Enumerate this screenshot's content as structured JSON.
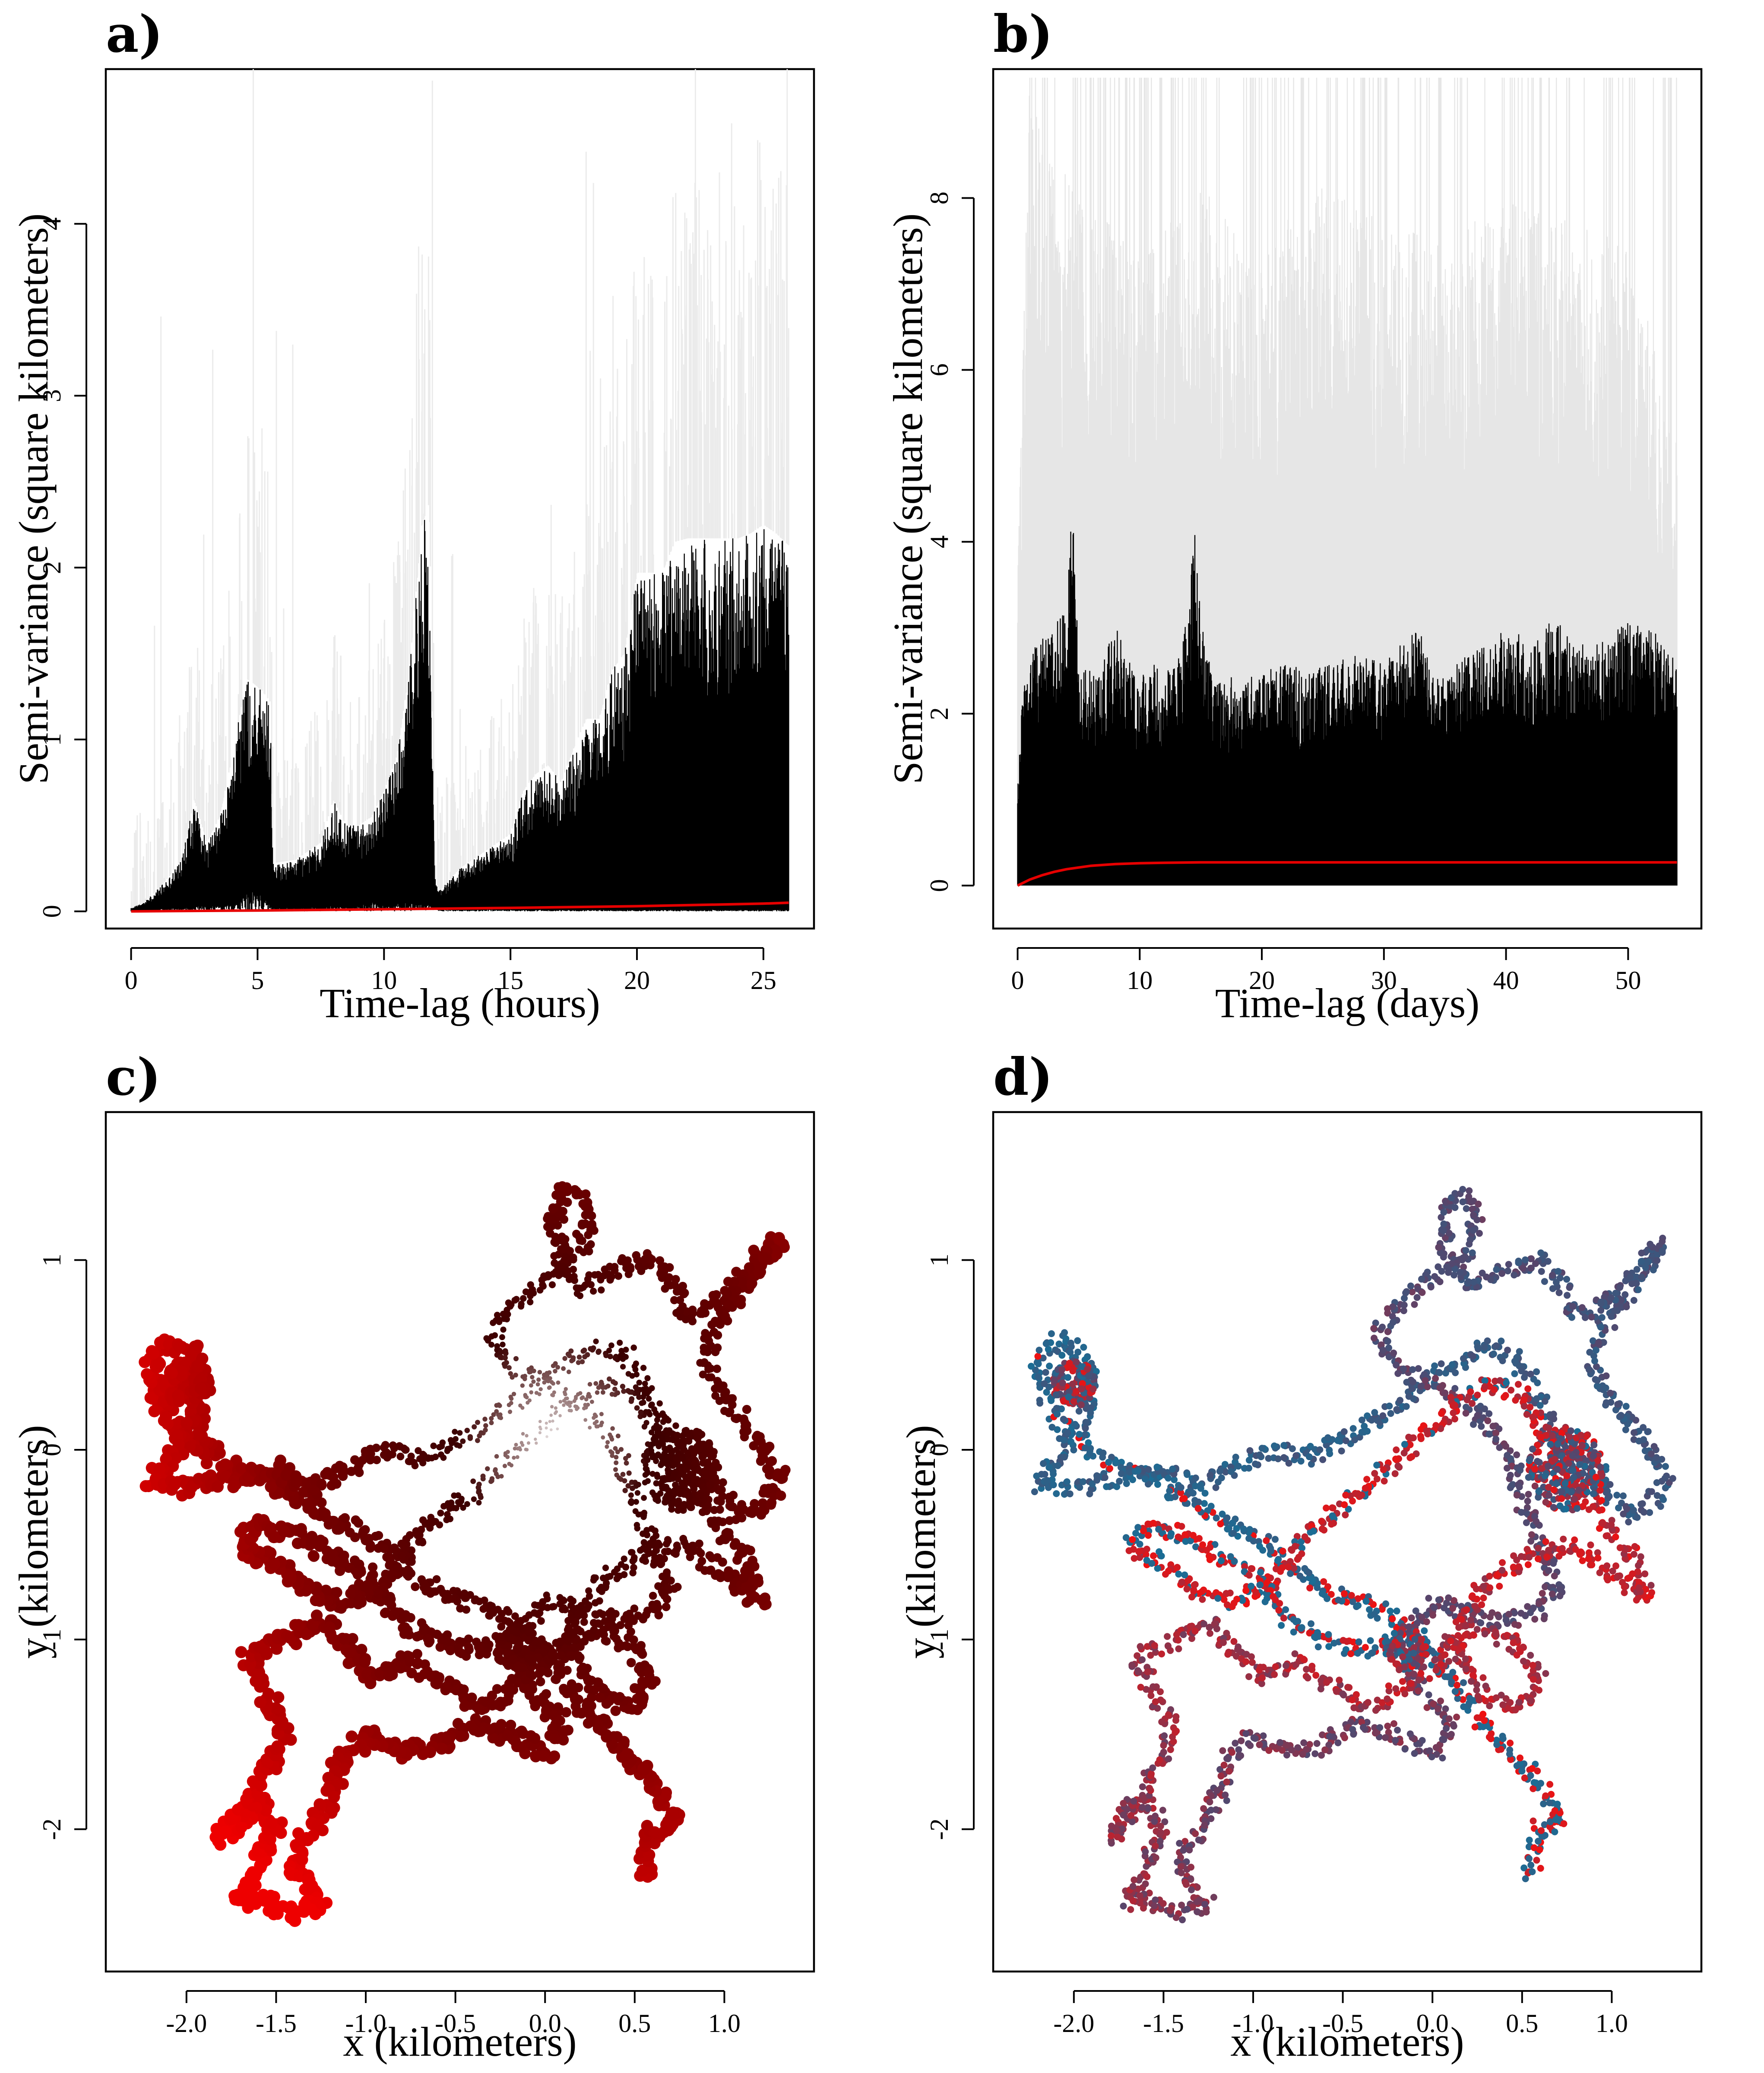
{
  "chart_data": [
    {
      "panel": "a)",
      "type": "line",
      "xlabel": "Time-lag (hours)",
      "ylabel": "Semi-variance (square kilometers)",
      "xlim": [
        -1,
        27
      ],
      "ylim": [
        -0.1,
        4.9
      ],
      "xticks": [
        0,
        5,
        10,
        15,
        20,
        25
      ],
      "yticks": [
        0,
        1,
        2,
        3,
        4
      ],
      "empirical_color": "#000000",
      "ci_color": "#ebebeb",
      "model_color": "#e60000",
      "empirical_envelope": {
        "x": [
          0,
          0.5,
          1,
          1.5,
          2,
          2.5,
          3,
          3.5,
          4,
          4.3,
          4.6,
          4.9,
          5.2,
          5.5,
          5.6,
          6.5,
          7,
          7.5,
          8,
          8.5,
          9,
          9.5,
          10,
          10.5,
          11,
          11.5,
          11.8,
          12,
          12.2,
          13,
          14,
          15,
          15.5,
          16,
          16.5,
          17,
          17.5,
          18,
          18.5,
          19,
          19.5,
          20,
          20.5,
          21,
          21.5,
          22,
          22.5,
          23,
          23.5,
          24,
          24.5,
          25,
          25.5,
          26
        ],
        "upper": [
          0.02,
          0.05,
          0.12,
          0.2,
          0.3,
          0.65,
          0.4,
          0.55,
          0.9,
          1.15,
          1.35,
          1.32,
          1.28,
          1.22,
          0.28,
          0.3,
          0.35,
          0.4,
          0.65,
          0.5,
          0.5,
          0.55,
          0.7,
          0.9,
          1.4,
          2.25,
          2.38,
          0.2,
          0.12,
          0.25,
          0.35,
          0.45,
          0.7,
          0.8,
          0.85,
          0.75,
          0.95,
          1.12,
          1.12,
          1.4,
          1.5,
          1.97,
          1.97,
          1.97,
          2.15,
          2.17,
          2.17,
          2.17,
          2.17,
          2.17,
          2.2,
          2.25,
          2.2,
          2.13
        ],
        "lower": [
          0,
          0,
          0.01,
          0.02,
          0.02,
          0.03,
          0.03,
          0.04,
          0.05,
          0.08,
          0.1,
          0.12,
          0.1,
          0.05,
          0.02,
          0.02,
          0.02,
          0.03,
          0.03,
          0.03,
          0.04,
          0.05,
          0.05,
          0.05,
          0.05,
          0.05,
          0.05,
          0.02,
          0.01,
          0.01,
          0.01,
          0.01,
          0.01,
          0.01,
          0.01,
          0.01,
          0.01,
          0.01,
          0.01,
          0.01,
          0.01,
          0.01,
          0.01,
          0.01,
          0.01,
          0.01,
          0.01,
          0.01,
          0.01,
          0.01,
          0.01,
          0.01,
          0.01,
          0.01
        ]
      },
      "model": {
        "x": [
          0,
          5,
          10,
          15,
          20,
          25,
          26
        ],
        "y": [
          0,
          0.005,
          0.012,
          0.02,
          0.03,
          0.045,
          0.05
        ]
      }
    },
    {
      "panel": "b)",
      "type": "line",
      "xlabel": "Time-lag (days)",
      "ylabel": "Semi-variance (square kilometers)",
      "xlim": [
        -2,
        56
      ],
      "ylim": [
        -0.5,
        9.5
      ],
      "xticks": [
        0,
        10,
        20,
        30,
        40,
        50
      ],
      "yticks": [
        0,
        2,
        4,
        6,
        8
      ],
      "empirical_color": "#000000",
      "ci_color": "#e6e6e6",
      "model_color": "#e60000",
      "empirical_envelope": {
        "x": [
          0,
          0.5,
          1,
          2,
          3,
          4,
          4.5,
          5,
          6,
          7,
          8,
          9,
          10,
          11,
          12,
          13,
          14,
          14.5,
          15,
          16,
          18,
          20,
          22,
          24,
          26,
          28,
          30,
          32,
          33,
          34,
          35,
          36,
          38,
          40,
          42,
          44,
          46,
          48,
          50,
          52,
          54
        ],
        "upper": [
          1.3,
          2.4,
          2.7,
          2.9,
          3.0,
          3.3,
          4.5,
          2.6,
          2.5,
          2.6,
          3.1,
          2.7,
          2.4,
          2.6,
          2.5,
          2.6,
          3.2,
          4.3,
          3.1,
          2.5,
          2.4,
          2.5,
          2.6,
          2.5,
          2.6,
          2.7,
          2.6,
          2.9,
          3.0,
          2.5,
          2.4,
          2.6,
          2.8,
          3.0,
          2.9,
          3.1,
          2.8,
          2.9,
          3.1,
          3.0,
          2.6
        ],
        "lower": [
          0,
          0,
          0,
          0,
          0,
          0,
          0,
          0,
          0,
          0,
          0,
          0,
          0,
          0,
          0,
          0,
          0,
          0,
          0,
          0,
          0,
          0,
          0,
          0,
          0,
          0,
          0,
          0,
          0,
          0,
          0,
          0,
          0,
          0,
          0,
          0,
          0,
          0,
          0,
          0,
          0
        ]
      },
      "ci_envelope": {
        "x": [
          0,
          1,
          2,
          5,
          10,
          15,
          20,
          25,
          30,
          35,
          40,
          45,
          50,
          54
        ],
        "upper": [
          3.5,
          9.4,
          9.4,
          9.4,
          9.4,
          9.4,
          9.4,
          9.4,
          9.4,
          9.4,
          9.4,
          9.4,
          9.4,
          9.4
        ],
        "typical_upper": [
          3.5,
          7.5,
          7.0,
          6.5,
          6.0,
          6.5,
          6.0,
          6.5,
          6.2,
          6.0,
          6.4,
          6.2,
          6.0,
          4.2
        ]
      },
      "model": {
        "x": [
          0,
          1,
          2,
          3,
          4,
          5,
          6,
          8,
          10,
          12,
          15,
          20,
          30,
          40,
          54
        ],
        "y": [
          0,
          0.07,
          0.12,
          0.16,
          0.19,
          0.21,
          0.23,
          0.25,
          0.26,
          0.265,
          0.27,
          0.27,
          0.27,
          0.27,
          0.27
        ]
      }
    },
    {
      "panel": "c)",
      "type": "scatter",
      "xlabel": "x (kilometers)",
      "ylabel": "y (kilometers)",
      "xlim": [
        -2.45,
        1.5
      ],
      "ylim": [
        -2.75,
        1.78
      ],
      "xticks": [
        "-2.0",
        "-1.5",
        "-1.0",
        "-0.5",
        "0.0",
        "0.5",
        "1.0"
      ],
      "xtick_values": [
        -2.0,
        -1.5,
        -1.0,
        -0.5,
        0.0,
        0.5,
        1.0
      ],
      "yticks": [
        "1",
        "0",
        "-1",
        "-2"
      ],
      "ytick_values": [
        1,
        0,
        -1,
        -2
      ],
      "coloring": "radial shade: white center to dark red to bright red at edges",
      "colors": [
        "#ffffff",
        "#3a0000",
        "#7a0000",
        "#ee0000"
      ],
      "track": [
        [
          0.55,
          -2.24
        ],
        [
          0.6,
          -2.0
        ],
        [
          0.72,
          -1.98
        ],
        [
          0.6,
          -1.75
        ],
        [
          0.4,
          -1.55
        ],
        [
          0.25,
          -1.4
        ],
        [
          0.1,
          -1.2
        ],
        [
          -0.05,
          -1.0
        ],
        [
          -0.2,
          -0.9
        ],
        [
          -0.4,
          -0.8
        ],
        [
          -0.6,
          -0.75
        ],
        [
          -0.8,
          -0.6
        ],
        [
          -1.0,
          -0.45
        ],
        [
          -1.2,
          -0.35
        ],
        [
          -1.4,
          -0.25
        ],
        [
          -1.55,
          -0.15
        ],
        [
          -1.75,
          -0.1
        ],
        [
          -1.9,
          0.0
        ],
        [
          -2.05,
          0.1
        ],
        [
          -2.15,
          0.25
        ],
        [
          -2.2,
          0.45
        ],
        [
          -2.1,
          0.58
        ],
        [
          -1.95,
          0.5
        ],
        [
          -1.9,
          0.35
        ],
        [
          -1.95,
          0.15
        ],
        [
          -2.1,
          -0.05
        ],
        [
          -2.2,
          -0.18
        ],
        [
          -2.0,
          -0.2
        ],
        [
          -1.75,
          -0.15
        ],
        [
          -1.5,
          -0.1
        ],
        [
          -1.3,
          -0.2
        ],
        [
          -1.1,
          -0.1
        ],
        [
          -0.9,
          0.0
        ],
        [
          -0.7,
          -0.05
        ],
        [
          -0.5,
          0.05
        ],
        [
          -0.3,
          0.15
        ],
        [
          -0.1,
          0.3
        ],
        [
          0.1,
          0.45
        ],
        [
          0.3,
          0.55
        ],
        [
          0.45,
          0.5
        ],
        [
          0.55,
          0.35
        ],
        [
          0.65,
          0.15
        ],
        [
          0.8,
          0.0
        ],
        [
          0.95,
          -0.2
        ],
        [
          1.1,
          -0.35
        ],
        [
          1.25,
          -0.25
        ],
        [
          1.3,
          -0.15
        ],
        [
          1.2,
          0.05
        ],
        [
          1.0,
          0.25
        ],
        [
          0.9,
          0.45
        ],
        [
          0.95,
          0.65
        ],
        [
          1.1,
          0.85
        ],
        [
          1.3,
          1.1
        ],
        [
          1.2,
          1.0
        ],
        [
          1.0,
          0.8
        ],
        [
          0.8,
          0.7
        ],
        [
          0.7,
          0.9
        ],
        [
          0.6,
          1.0
        ],
        [
          0.4,
          0.95
        ],
        [
          0.2,
          0.85
        ],
        [
          0.1,
          1.0
        ],
        [
          0.05,
          1.2
        ],
        [
          0.1,
          1.35
        ],
        [
          0.2,
          1.35
        ],
        [
          0.25,
          1.2
        ],
        [
          0.2,
          1.05
        ],
        [
          0.0,
          0.9
        ],
        [
          -0.2,
          0.75
        ],
        [
          -0.3,
          0.6
        ],
        [
          -0.2,
          0.45
        ],
        [
          0.0,
          0.35
        ],
        [
          0.25,
          0.2
        ],
        [
          0.4,
          0.0
        ],
        [
          0.5,
          -0.25
        ],
        [
          0.6,
          -0.5
        ],
        [
          0.7,
          -0.7
        ],
        [
          0.6,
          -0.85
        ],
        [
          0.4,
          -0.9
        ],
        [
          0.2,
          -0.85
        ],
        [
          0.0,
          -0.8
        ],
        [
          -0.1,
          -0.95
        ],
        [
          -0.15,
          -1.1
        ],
        [
          -0.05,
          -1.3
        ],
        [
          0.1,
          -1.45
        ],
        [
          0.0,
          -1.6
        ],
        [
          -0.2,
          -1.5
        ],
        [
          -0.4,
          -1.45
        ],
        [
          -0.6,
          -1.55
        ],
        [
          -0.8,
          -1.6
        ],
        [
          -1.0,
          -1.5
        ],
        [
          -1.15,
          -1.65
        ],
        [
          -1.2,
          -1.85
        ],
        [
          -1.3,
          -2.0
        ],
        [
          -1.4,
          -2.15
        ],
        [
          -1.35,
          -2.3
        ],
        [
          -1.25,
          -2.4
        ],
        [
          -1.45,
          -2.45
        ],
        [
          -1.6,
          -2.35
        ],
        [
          -1.7,
          -2.4
        ],
        [
          -1.6,
          -2.2
        ],
        [
          -1.5,
          -2.0
        ],
        [
          -1.6,
          -1.85
        ],
        [
          -1.8,
          -2.05
        ],
        [
          -1.7,
          -1.9
        ],
        [
          -1.55,
          -1.7
        ],
        [
          -1.45,
          -1.5
        ],
        [
          -1.55,
          -1.3
        ],
        [
          -1.65,
          -1.1
        ],
        [
          -1.45,
          -1.0
        ],
        [
          -1.25,
          -0.9
        ],
        [
          -1.1,
          -1.05
        ],
        [
          -0.95,
          -1.2
        ],
        [
          -0.75,
          -1.1
        ],
        [
          -0.55,
          -1.25
        ],
        [
          -0.35,
          -1.35
        ],
        [
          -0.15,
          -1.25
        ],
        [
          0.05,
          -1.1
        ],
        [
          0.25,
          -0.95
        ],
        [
          0.45,
          -1.0
        ],
        [
          0.6,
          -1.2
        ],
        [
          0.5,
          -1.35
        ],
        [
          0.3,
          -1.3
        ],
        [
          0.1,
          -1.0
        ],
        [
          0.3,
          -0.7
        ],
        [
          0.55,
          -0.55
        ],
        [
          0.8,
          -0.5
        ],
        [
          1.0,
          -0.65
        ],
        [
          1.2,
          -0.8
        ],
        [
          1.1,
          -0.55
        ],
        [
          0.9,
          -0.3
        ],
        [
          0.75,
          -0.1
        ],
        [
          0.6,
          0.1
        ],
        [
          0.5,
          0.3
        ],
        [
          0.3,
          0.35
        ],
        [
          0.1,
          0.2
        ],
        [
          -0.1,
          0.05
        ],
        [
          -0.3,
          -0.15
        ],
        [
          -0.5,
          -0.3
        ],
        [
          -0.7,
          -0.45
        ],
        [
          -0.9,
          -0.7
        ],
        [
          -1.1,
          -0.8
        ],
        [
          -1.3,
          -0.75
        ],
        [
          -1.5,
          -0.6
        ],
        [
          -1.7,
          -0.5
        ],
        [
          -1.6,
          -0.4
        ],
        [
          -1.4,
          -0.45
        ],
        [
          -1.2,
          -0.55
        ],
        [
          -1.0,
          -0.65
        ],
        [
          -0.8,
          -0.9
        ],
        [
          -0.6,
          -1.0
        ],
        [
          -0.4,
          -1.05
        ],
        [
          -0.2,
          -1.0
        ]
      ]
    },
    {
      "panel": "d)",
      "type": "scatter",
      "xlabel": "x (kilometers)",
      "ylabel": "y (kilometers)",
      "xlim": [
        -2.45,
        1.5
      ],
      "ylim": [
        -2.75,
        1.78
      ],
      "xticks": [
        "-2.0",
        "-1.5",
        "-1.0",
        "-0.5",
        "0.0",
        "0.5",
        "1.0"
      ],
      "xtick_values": [
        -2.0,
        -1.5,
        -1.0,
        -0.5,
        0.0,
        0.5,
        1.0
      ],
      "yticks": [
        "1",
        "0",
        "-1",
        "-2"
      ],
      "ytick_values": [
        1,
        0,
        -1,
        -2
      ],
      "coloring": "time-ordered gradient: blue (#1a6d95) through purple (#58456b) to red (#ee1111)",
      "colors": [
        "#1a6d95",
        "#58456b",
        "#ee1111"
      ]
    }
  ]
}
